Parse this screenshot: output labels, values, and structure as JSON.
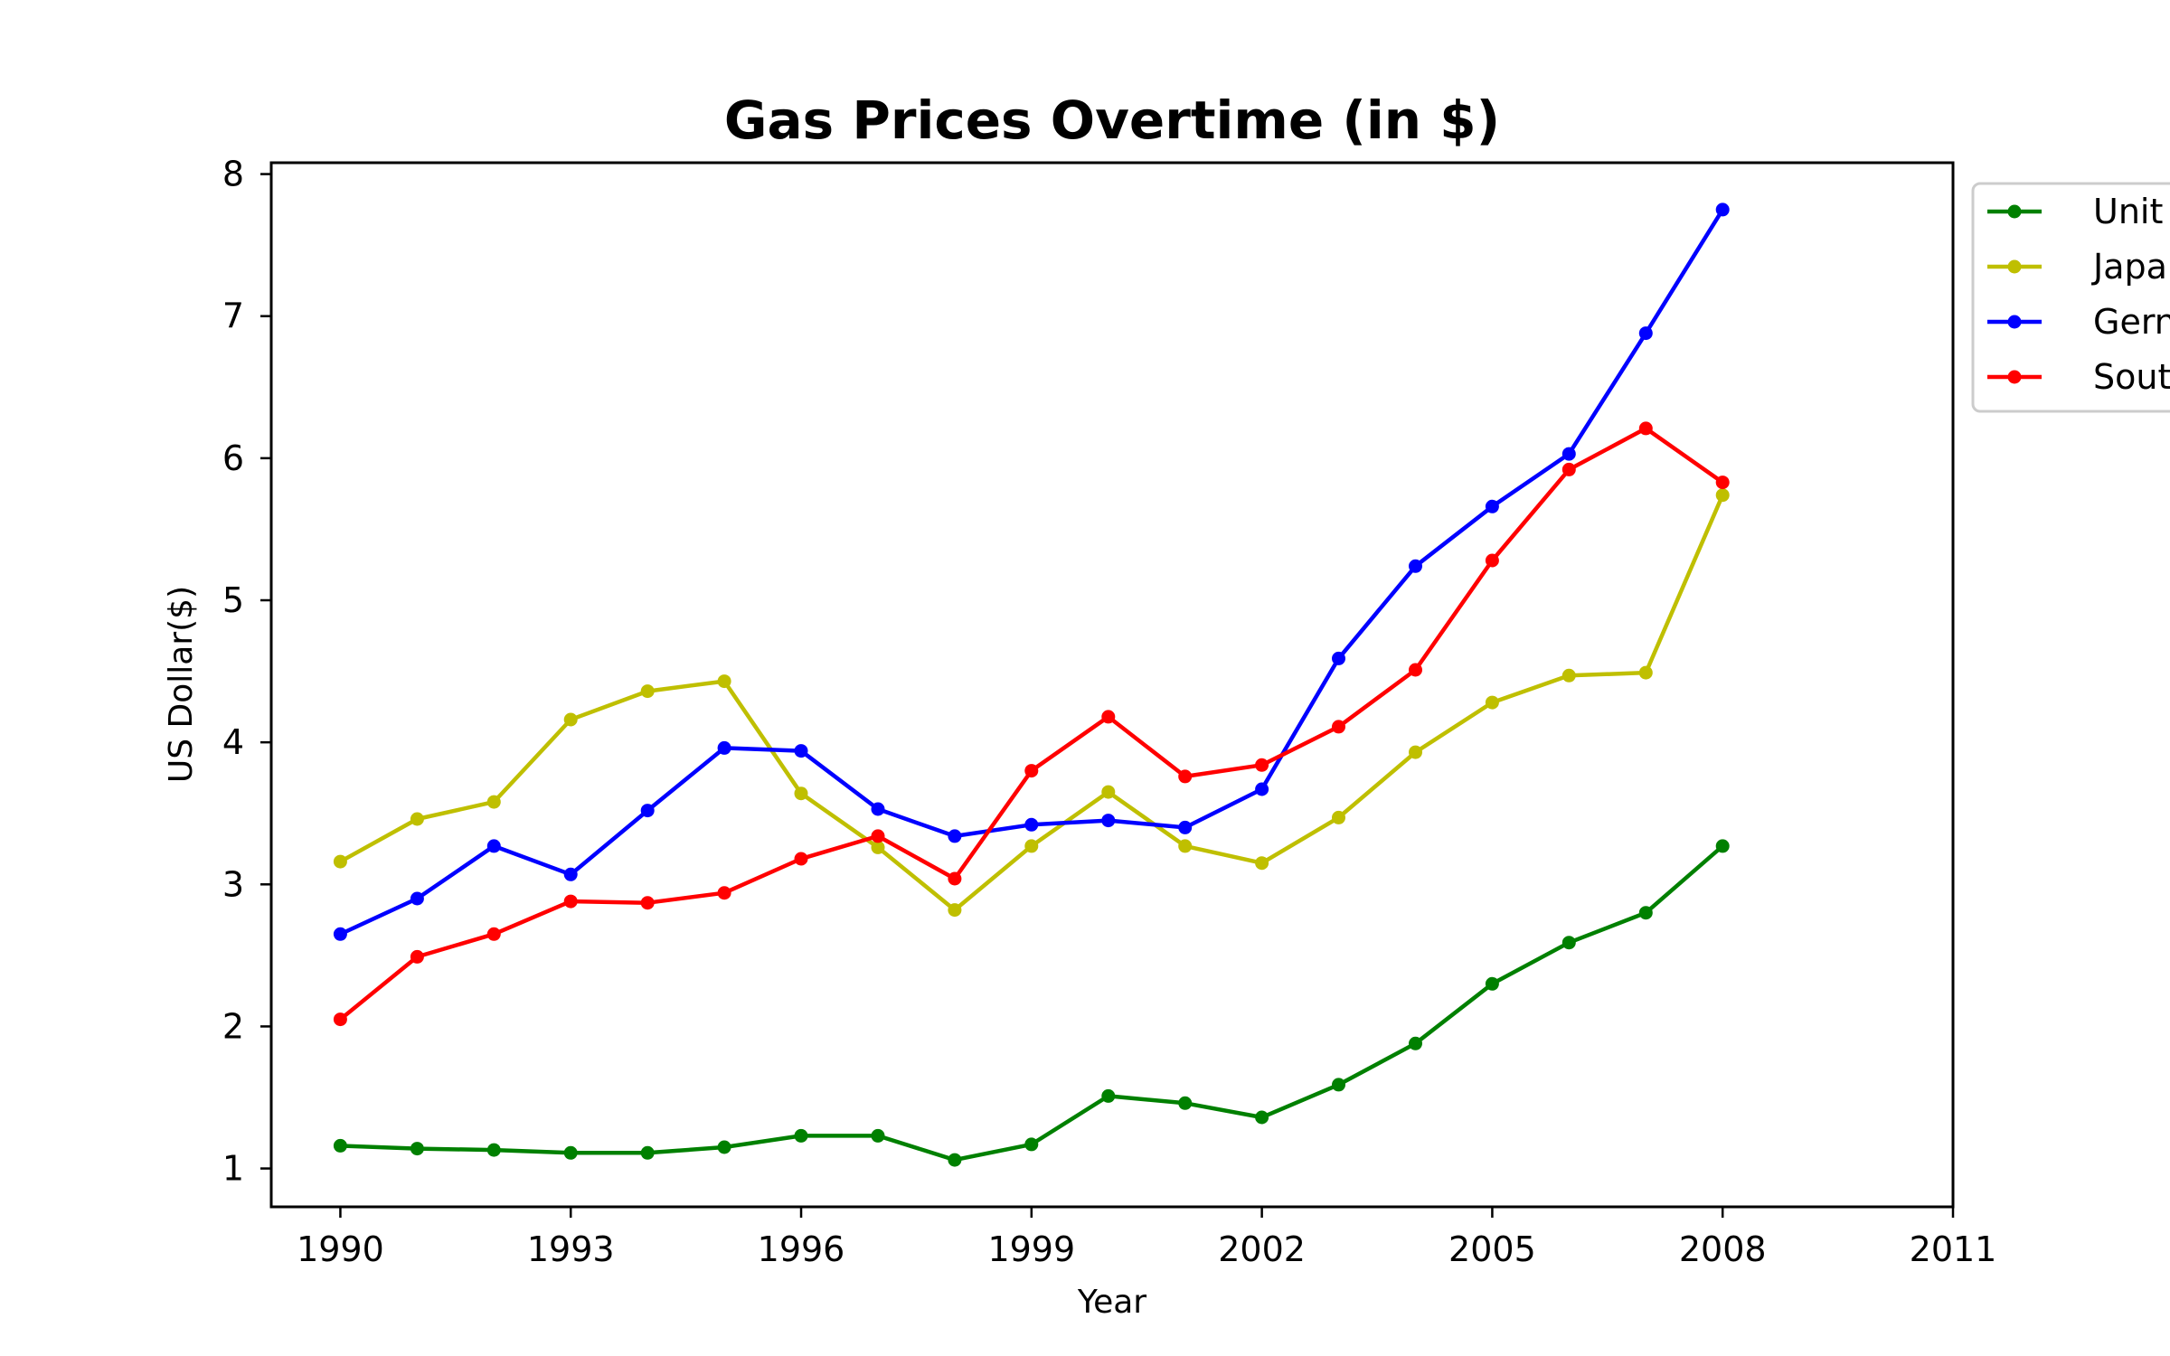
{
  "chart_data": {
    "type": "line",
    "title": "Gas Prices Overtime (in $)",
    "xlabel": "Year",
    "ylabel": "US Dollar($)",
    "xlim": [
      1989.1,
      2011
    ],
    "ylim": [
      0.73,
      8.08
    ],
    "xticks": [
      1990,
      1993,
      1996,
      1999,
      2002,
      2005,
      2008,
      2011
    ],
    "yticks": [
      1,
      2,
      3,
      4,
      5,
      6,
      7,
      8
    ],
    "grid": false,
    "legend_position": "outside-top-right",
    "x": [
      1990,
      1991,
      1992,
      1993,
      1994,
      1995,
      1996,
      1997,
      1998,
      1999,
      2000,
      2001,
      2002,
      2003,
      2004,
      2005,
      2006,
      2007,
      2008
    ],
    "series": [
      {
        "name": "Unit",
        "color": "#008000",
        "values": [
          1.16,
          1.14,
          1.13,
          1.11,
          1.11,
          1.15,
          1.23,
          1.23,
          1.06,
          1.17,
          1.51,
          1.46,
          1.36,
          1.59,
          1.88,
          2.3,
          2.59,
          2.8,
          3.27
        ]
      },
      {
        "name": "Japa",
        "color": "#bfbf00",
        "values": [
          3.16,
          3.46,
          3.58,
          4.16,
          4.36,
          4.43,
          3.64,
          3.26,
          2.82,
          3.27,
          3.65,
          3.27,
          3.15,
          3.47,
          3.93,
          4.28,
          4.47,
          4.49,
          5.74
        ]
      },
      {
        "name": "Gern",
        "color": "#0000ff",
        "values": [
          2.65,
          2.9,
          3.27,
          3.07,
          3.52,
          3.96,
          3.94,
          3.53,
          3.34,
          3.42,
          3.45,
          3.4,
          3.67,
          4.59,
          5.24,
          5.66,
          6.03,
          6.88,
          7.75
        ]
      },
      {
        "name": "Sout",
        "color": "#ff0000",
        "values": [
          2.05,
          2.49,
          2.65,
          2.88,
          2.87,
          2.94,
          3.18,
          3.34,
          3.04,
          3.8,
          4.18,
          3.76,
          3.84,
          4.11,
          4.51,
          5.28,
          5.92,
          6.21,
          5.83
        ]
      }
    ]
  }
}
